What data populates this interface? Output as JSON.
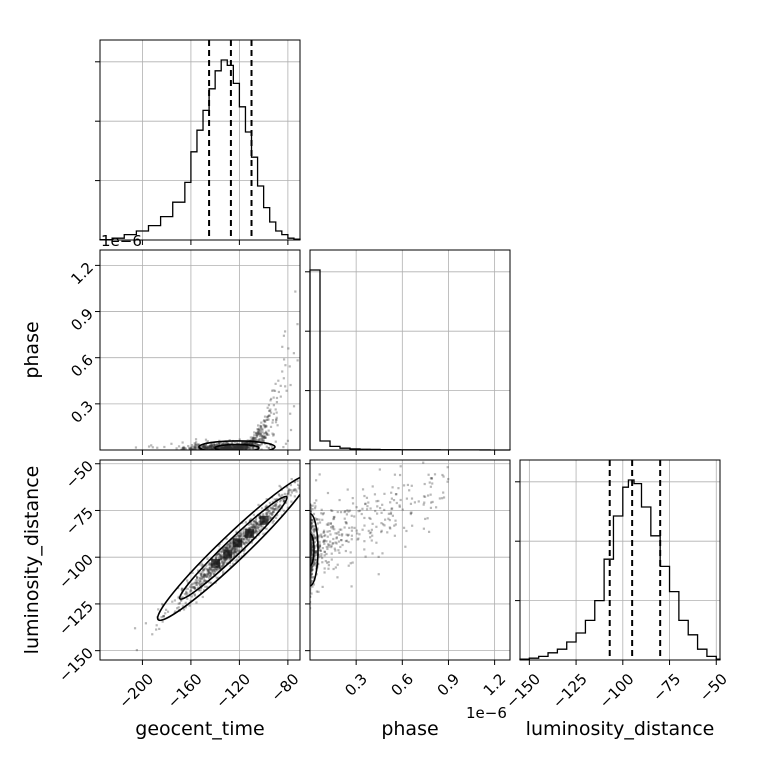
{
  "chart_data": {
    "type": "corner",
    "parameters": [
      "geocent_time",
      "phase",
      "luminosity_distance"
    ],
    "phase_offset_label": "1e−6",
    "axes": {
      "geocent_time": {
        "range": [
          -235,
          -70
        ],
        "ticks": [
          -200,
          -160,
          -120,
          -80
        ],
        "tick_labels": [
          "−200",
          "−160",
          "−120",
          "−80"
        ]
      },
      "phase": {
        "range": [
          0,
          1.3
        ],
        "ticks": [
          0.3,
          0.6,
          0.9,
          1.2
        ],
        "tick_labels": [
          "0.3",
          "0.6",
          "0.9",
          "1.2"
        ]
      },
      "luminosity_distance": {
        "range": [
          -155,
          -48
        ],
        "ticks": [
          -150,
          -125,
          -100,
          -75,
          -50
        ],
        "tick_labels": [
          "−150",
          "−125",
          "−100",
          "−75",
          "−50"
        ]
      }
    },
    "marginals": {
      "geocent_time": {
        "bin_edges": [
          -235,
          -225,
          -215,
          -205,
          -195,
          -185,
          -175,
          -165,
          -160,
          -155,
          -150,
          -145,
          -140,
          -135,
          -130,
          -125,
          -120,
          -115,
          -110,
          -105,
          -100,
          -95,
          -90,
          -85,
          -80,
          -75,
          -70
        ],
        "heights": [
          0.002,
          0.01,
          0.03,
          0.05,
          0.08,
          0.13,
          0.21,
          0.32,
          0.49,
          0.61,
          0.72,
          0.84,
          0.94,
          1.0,
          0.97,
          0.87,
          0.74,
          0.6,
          0.46,
          0.3,
          0.18,
          0.1,
          0.05,
          0.03,
          0.01,
          0.005
        ],
        "quantiles": [
          -145,
          -127,
          -110
        ]
      },
      "phase": {
        "bin_edges": [
          0,
          0.065,
          0.13,
          0.195,
          0.26,
          0.325,
          0.39,
          0.455,
          0.52,
          0.585,
          0.65,
          0.715,
          0.78,
          0.845,
          0.91,
          0.975,
          1.04,
          1.105,
          1.17,
          1.235,
          1.3
        ],
        "heights": [
          1.0,
          0.05,
          0.02,
          0.01,
          0.006,
          0.004,
          0.003,
          0.002,
          0.002,
          0.001,
          0.001,
          0.001,
          0.001,
          0.0005,
          0.0005,
          0.0005,
          0.0005,
          0.0003,
          0.0002,
          0.0001
        ],
        "quantiles": []
      },
      "luminosity_distance": {
        "bin_edges": [
          -155,
          -150,
          -145,
          -140,
          -135,
          -130,
          -125,
          -120,
          -115,
          -110,
          -105,
          -100,
          -97,
          -94,
          -90,
          -85,
          -80,
          -75,
          -70,
          -65,
          -60,
          -55,
          -50,
          -48
        ],
        "heights": [
          0.005,
          0.01,
          0.02,
          0.04,
          0.06,
          0.1,
          0.15,
          0.22,
          0.33,
          0.56,
          0.8,
          0.96,
          1.0,
          0.98,
          0.85,
          0.69,
          0.52,
          0.38,
          0.22,
          0.14,
          0.06,
          0.02,
          0.005
        ],
        "quantiles": [
          -107,
          -95,
          -80
        ]
      }
    },
    "pairs": [
      {
        "x": "geocent_time",
        "y": "phase",
        "center": [
          -122,
          0.02
        ],
        "spread": [
          20,
          0.01
        ],
        "trend": "phase rises steeply as geocent_time approaches −80"
      },
      {
        "x": "geocent_time",
        "y": "luminosity_distance",
        "center": [
          -125,
          -95
        ],
        "trend": "strong positive linear correlation, slope ≈ 0.6"
      },
      {
        "x": "phase",
        "y": "luminosity_distance",
        "center": [
          0.01,
          -96
        ],
        "trend": "most mass near phase ≈ 0, upper tail extends to higher distance"
      }
    ],
    "grid": true
  }
}
